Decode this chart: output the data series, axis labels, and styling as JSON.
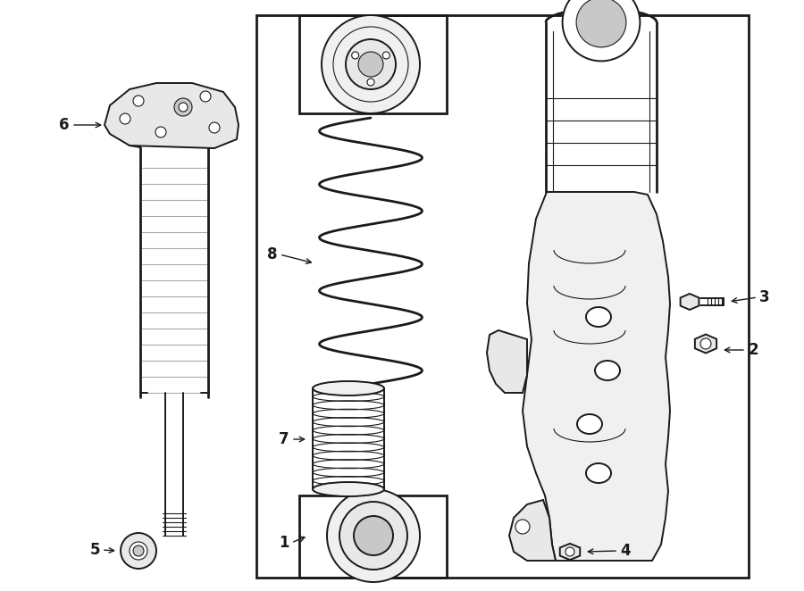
{
  "bg_color": "#ffffff",
  "line_color": "#1a1a1a",
  "figure_width": 9.0,
  "figure_height": 6.62,
  "dpi": 100,
  "lw_main": 1.4,
  "lw_thick": 2.0,
  "lw_thin": 0.8,
  "gray_fill": "#e8e8e8",
  "gray_dark": "#c8c8c8",
  "gray_light": "#f0f0f0"
}
